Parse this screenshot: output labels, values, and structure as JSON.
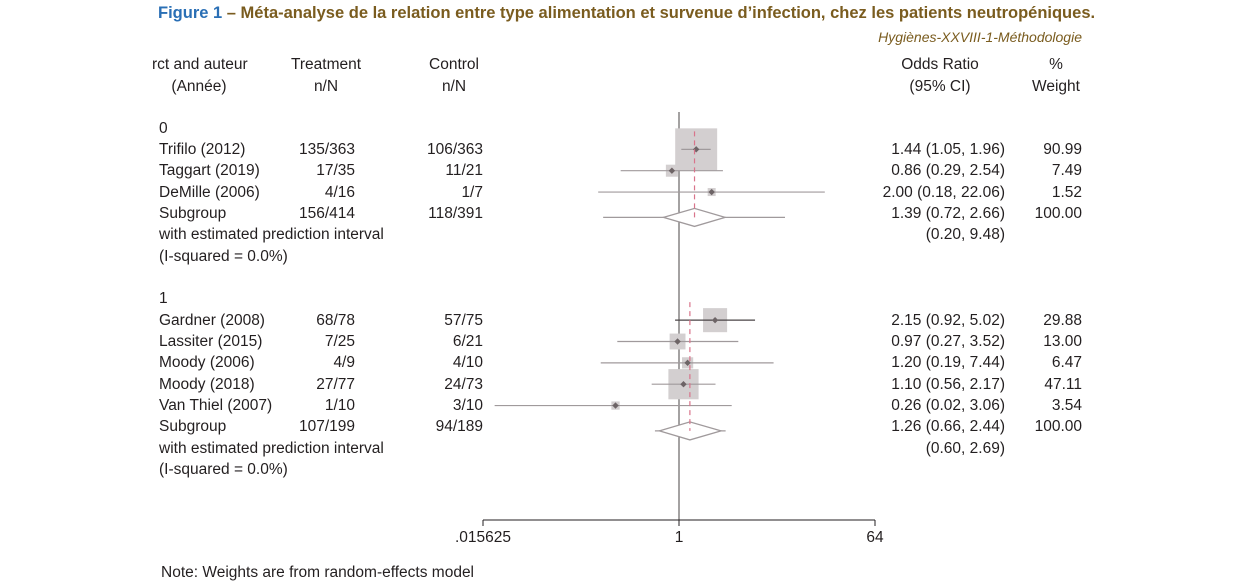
{
  "figure": {
    "label": "Figure 1",
    "title": " – Méta-analyse de la relation entre type alimentation et survenue d’infection, chez les patients neutropéniques.",
    "source": "Hygiènes-XXVIII-1-Méthodologie",
    "note": "Note: Weights are from random-effects model"
  },
  "columns": {
    "study_line1": "rct and auteur",
    "study_line2": "(Année)",
    "treatment_line1": "Treatment",
    "treatment_line2": "n/N",
    "control_line1": "Control",
    "control_line2": "n/N",
    "or_line1": "Odds Ratio",
    "or_line2": "(95% CI)",
    "weight_line1": "%",
    "weight_line2": "Weight"
  },
  "chart_data": {
    "type": "forest",
    "x_scale": "log2",
    "xlim": [
      0.015625,
      64
    ],
    "tick_labels": [
      ".015625",
      "1",
      "64"
    ],
    "tick_values": [
      0.015625,
      1,
      64
    ],
    "reference_line": 1,
    "colors": {
      "box": "#d3cfd0",
      "point": "#6d6466",
      "ci": "#a09a9c",
      "ci_dark": "#4a4446",
      "overall": "#d9748b"
    },
    "groups": [
      {
        "label": "0",
        "studies": [
          {
            "name": "Trifilo (2012)",
            "treatment": "135/363",
            "control": "106/363",
            "or": 1.44,
            "lo": 1.05,
            "hi": 1.96,
            "or_text": "1.44 (1.05, 1.96)",
            "weight": 90.99,
            "weight_text": "90.99"
          },
          {
            "name": "Taggart (2019)",
            "treatment": "17/35",
            "control": "11/21",
            "or": 0.86,
            "lo": 0.29,
            "hi": 2.54,
            "or_text": "0.86 (0.29, 2.54)",
            "weight": 7.49,
            "weight_text": "7.49"
          },
          {
            "name": "DeMille (2006)",
            "treatment": "4/16",
            "control": "1/7",
            "or": 2.0,
            "lo": 0.18,
            "hi": 22.06,
            "or_text": "2.00 (0.18, 22.06)",
            "weight": 1.52,
            "weight_text": "1.52"
          }
        ],
        "subgroup": {
          "name": "Subgroup",
          "treatment": "156/414",
          "control": "118/391",
          "or": 1.39,
          "lo": 0.72,
          "hi": 2.66,
          "or_text": "1.39 (0.72, 2.66)",
          "weight_text": "100.00"
        },
        "prediction": {
          "label": "with estimated prediction interval",
          "lo": 0.2,
          "hi": 9.48,
          "text": "(0.20, 9.48)"
        },
        "isq": "(I-squared = 0.0%)"
      },
      {
        "label": "1",
        "studies": [
          {
            "name": "Gardner (2008)",
            "treatment": "68/78",
            "control": "57/75",
            "or": 2.15,
            "lo": 0.92,
            "hi": 5.02,
            "or_text": "2.15 (0.92, 5.02)",
            "weight": 29.88,
            "weight_text": "29.88"
          },
          {
            "name": "Lassiter (2015)",
            "treatment": "7/25",
            "control": "6/21",
            "or": 0.97,
            "lo": 0.27,
            "hi": 3.52,
            "or_text": "0.97 (0.27, 3.52)",
            "weight": 13.0,
            "weight_text": "13.00"
          },
          {
            "name": "Moody (2006)",
            "treatment": "4/9",
            "control": "4/10",
            "or": 1.2,
            "lo": 0.19,
            "hi": 7.44,
            "or_text": "1.20 (0.19, 7.44)",
            "weight": 6.47,
            "weight_text": "6.47"
          },
          {
            "name": "Moody (2018)",
            "treatment": "27/77",
            "control": "24/73",
            "or": 1.1,
            "lo": 0.56,
            "hi": 2.17,
            "or_text": "1.10 (0.56, 2.17)",
            "weight": 47.11,
            "weight_text": "47.11"
          },
          {
            "name": "Van Thiel (2007)",
            "treatment": "1/10",
            "control": "3/10",
            "or": 0.26,
            "lo": 0.02,
            "hi": 3.06,
            "or_text": "0.26 (0.02, 3.06)",
            "weight": 3.54,
            "weight_text": "3.54"
          }
        ],
        "subgroup": {
          "name": "Subgroup",
          "treatment": "107/199",
          "control": "94/189",
          "or": 1.26,
          "lo": 0.66,
          "hi": 2.44,
          "or_text": "1.26 (0.66, 2.44)",
          "weight_text": "100.00"
        },
        "prediction": {
          "label": "with estimated prediction interval",
          "lo": 0.6,
          "hi": 2.69,
          "text": "(0.60, 2.69)"
        },
        "isq": "(I-squared = 0.0%)"
      }
    ]
  }
}
